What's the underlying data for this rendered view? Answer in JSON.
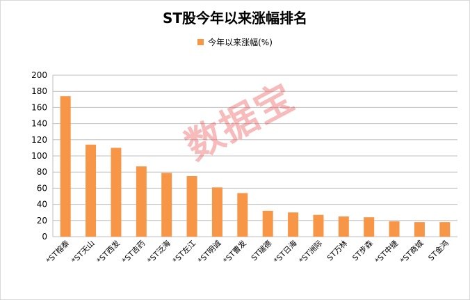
{
  "chart_data": {
    "type": "bar",
    "title": "ST股今年以来涨幅排名",
    "legend": {
      "position": "top",
      "label": "今年以来涨幅(%)"
    },
    "ylim": [
      0,
      200
    ],
    "yticks": [
      0,
      20,
      40,
      60,
      80,
      100,
      120,
      140,
      160,
      180,
      200
    ],
    "grid": true,
    "color": "#f79646",
    "categories": [
      "*ST榕泰",
      "*ST天山",
      "*ST西发",
      "*ST吉药",
      "*ST泛海",
      "*ST左江",
      "*ST明诚",
      "*ST曹发",
      "ST瑞德",
      "*ST日海",
      "*ST洲际",
      "ST万林",
      "ST步森",
      "*ST中捷",
      "*ST商城",
      "ST金鸿"
    ],
    "values": [
      174,
      114,
      110,
      87,
      79,
      75,
      61,
      54,
      32,
      30,
      27,
      25,
      24,
      19,
      18,
      18
    ]
  },
  "watermark": "数据宝"
}
